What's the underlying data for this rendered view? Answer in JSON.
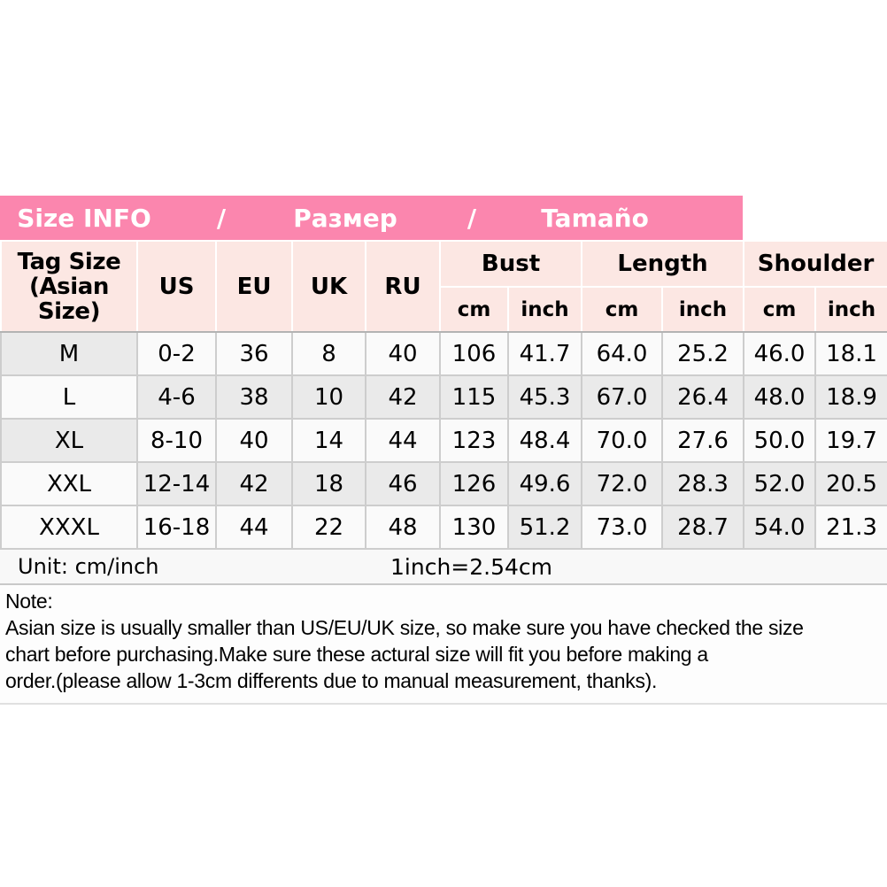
{
  "banner": {
    "items": [
      "Size INFO",
      "/",
      "Размер",
      "/",
      "Tamaño"
    ]
  },
  "table": {
    "header": {
      "tag_size_line1": "Tag Size",
      "tag_size_line2": "(Asian Size)",
      "size_columns": [
        "US",
        "EU",
        "UK",
        "RU"
      ],
      "measure_groups": [
        {
          "label": "Bust",
          "sub": [
            "cm",
            "inch"
          ]
        },
        {
          "label": "Length",
          "sub": [
            "cm",
            "inch"
          ]
        },
        {
          "label": "Shoulder",
          "sub": [
            "cm",
            "inch"
          ]
        }
      ]
    }
  },
  "chart_data": {
    "type": "table",
    "title": "Size INFO / Размер / Tamaño",
    "columns": [
      "Tag Size (Asian Size)",
      "US",
      "EU",
      "UK",
      "RU",
      "Bust cm",
      "Bust inch",
      "Length cm",
      "Length inch",
      "Shoulder cm",
      "Shoulder inch"
    ],
    "rows": [
      [
        "M",
        "0-2",
        "36",
        "8",
        "40",
        "106",
        "41.7",
        "64.0",
        "25.2",
        "46.0",
        "18.1"
      ],
      [
        "L",
        "4-6",
        "38",
        "10",
        "42",
        "115",
        "45.3",
        "67.0",
        "26.4",
        "48.0",
        "18.9"
      ],
      [
        "XL",
        "8-10",
        "40",
        "14",
        "44",
        "123",
        "48.4",
        "70.0",
        "27.6",
        "50.0",
        "19.7"
      ],
      [
        "XXL",
        "12-14",
        "42",
        "18",
        "46",
        "126",
        "49.6",
        "72.0",
        "28.3",
        "52.0",
        "20.5"
      ],
      [
        "XXXL",
        "16-18",
        "44",
        "22",
        "48",
        "130",
        "51.2",
        "73.0",
        "28.7",
        "54.0",
        "21.3"
      ]
    ]
  },
  "footer": {
    "unit_label": "Unit: cm/inch",
    "conversion": "1inch=2.54cm"
  },
  "note": {
    "title": "Note:",
    "lines": [
      "Asian size is usually smaller than US/EU/UK size, so make sure you have checked the size",
      "chart before purchasing.Make sure these actural size will fit you before making a",
      "order.(please allow 1-3cm differents due to manual measurement, thanks)."
    ]
  },
  "colors": {
    "banner_pink": "#fb86ae",
    "header_pink": "#fce7e3",
    "row_white": "#fafafa",
    "row_gray": "#eaeaea",
    "cell_border": "#cdcdcd",
    "banner_text": "#ffffff",
    "body_text": "#000000"
  }
}
